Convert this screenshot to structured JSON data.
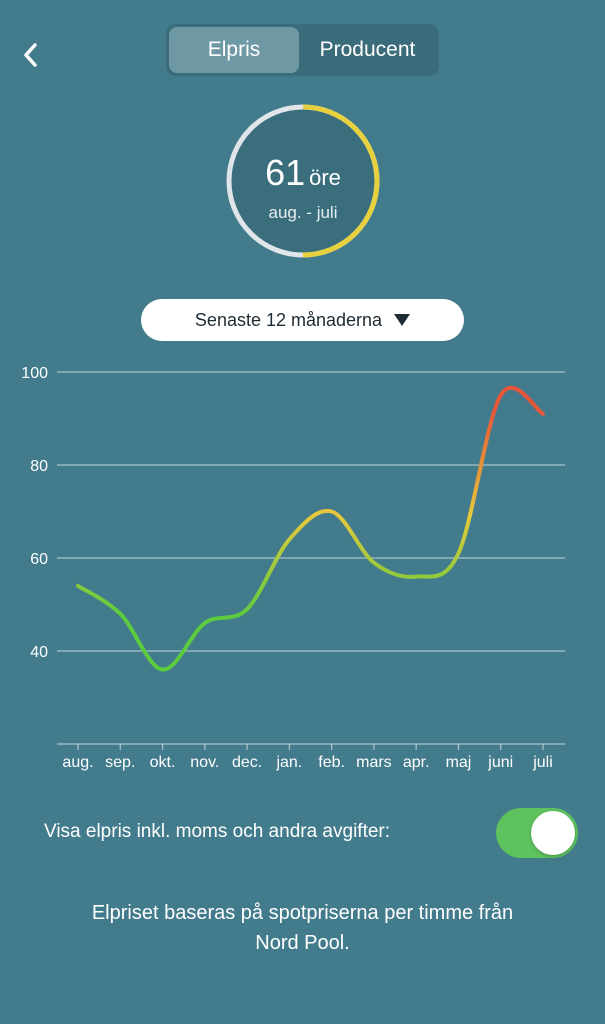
{
  "header": {
    "back_icon": "chevron-left-icon",
    "tabs": [
      {
        "label": "Elpris",
        "active": true
      },
      {
        "label": "Producent",
        "active": false
      }
    ]
  },
  "summary": {
    "value": "61",
    "unit": "öre",
    "period": "aug. - juli",
    "ring_fill_fraction": 0.5,
    "ring_fill_color": "#e8d13f",
    "ring_track_color": "#dfe5e8"
  },
  "period_select": {
    "selected": "Senaste 12 månaderna",
    "icon": "caret-down-icon"
  },
  "chart_data": {
    "type": "line",
    "categories": [
      "aug.",
      "sep.",
      "okt.",
      "nov.",
      "dec.",
      "jan.",
      "feb.",
      "mars",
      "apr.",
      "maj",
      "juni",
      "juli"
    ],
    "series": [
      {
        "values": [
          54,
          48,
          36,
          46,
          49,
          64,
          70,
          59,
          56,
          61,
          95,
          91
        ]
      }
    ],
    "yticks": [
      40,
      60,
      80,
      100
    ],
    "ylim": [
      20,
      100
    ],
    "grid": true,
    "gradient_colors": [
      "#5ccb3e",
      "#e6c93c",
      "#e8563a"
    ]
  },
  "settings": {
    "vat_label": "Visa elpris inkl. moms och andra avgifter:",
    "vat_enabled": true
  },
  "footer": {
    "text_line1": "Elpriset baseras på spotpriserna per timme från",
    "text_line2": "Nord Pool."
  }
}
